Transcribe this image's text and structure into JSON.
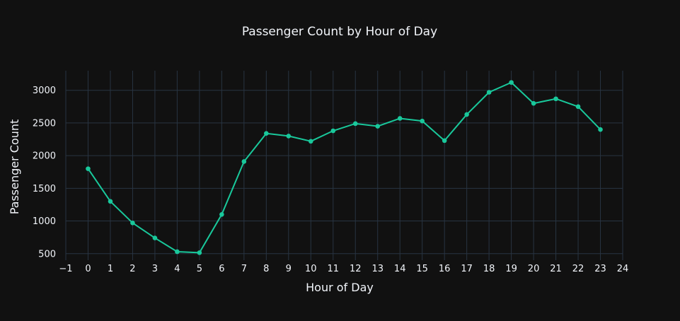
{
  "chart_data": {
    "type": "line",
    "title": "Passenger Count by Hour of Day",
    "xlabel": "Hour of Day",
    "ylabel": "Passenger Count",
    "xlim": [
      -1,
      24
    ],
    "ylim": [
      400,
      3300
    ],
    "x_ticks": [
      -1,
      0,
      1,
      2,
      3,
      4,
      5,
      6,
      7,
      8,
      9,
      10,
      11,
      12,
      13,
      14,
      15,
      16,
      17,
      18,
      19,
      20,
      21,
      22,
      23,
      24
    ],
    "x_tick_labels": [
      "−1",
      "0",
      "1",
      "2",
      "3",
      "4",
      "5",
      "6",
      "7",
      "8",
      "9",
      "10",
      "11",
      "12",
      "13",
      "14",
      "15",
      "16",
      "17",
      "18",
      "19",
      "20",
      "21",
      "22",
      "23",
      "24"
    ],
    "y_ticks": [
      500,
      1000,
      1500,
      2000,
      2500,
      3000
    ],
    "y_tick_labels": [
      "500",
      "1000",
      "1500",
      "2000",
      "2500",
      "3000"
    ],
    "grid": true,
    "legend": "none",
    "series": [
      {
        "color": "#19c89b",
        "x": [
          0,
          1,
          2,
          3,
          4,
          5,
          6,
          7,
          8,
          9,
          10,
          11,
          12,
          13,
          14,
          15,
          16,
          17,
          18,
          19,
          20,
          21,
          22,
          23
        ],
        "y": [
          1800,
          1300,
          970,
          740,
          530,
          515,
          1100,
          1910,
          2340,
          2300,
          2220,
          2380,
          2490,
          2450,
          2570,
          2530,
          2230,
          2630,
          2970,
          3120,
          2800,
          2870,
          2750,
          2400
        ]
      }
    ]
  },
  "colors": {
    "background": "#111111",
    "grid": "#283442",
    "text": "#f2f5fa"
  }
}
